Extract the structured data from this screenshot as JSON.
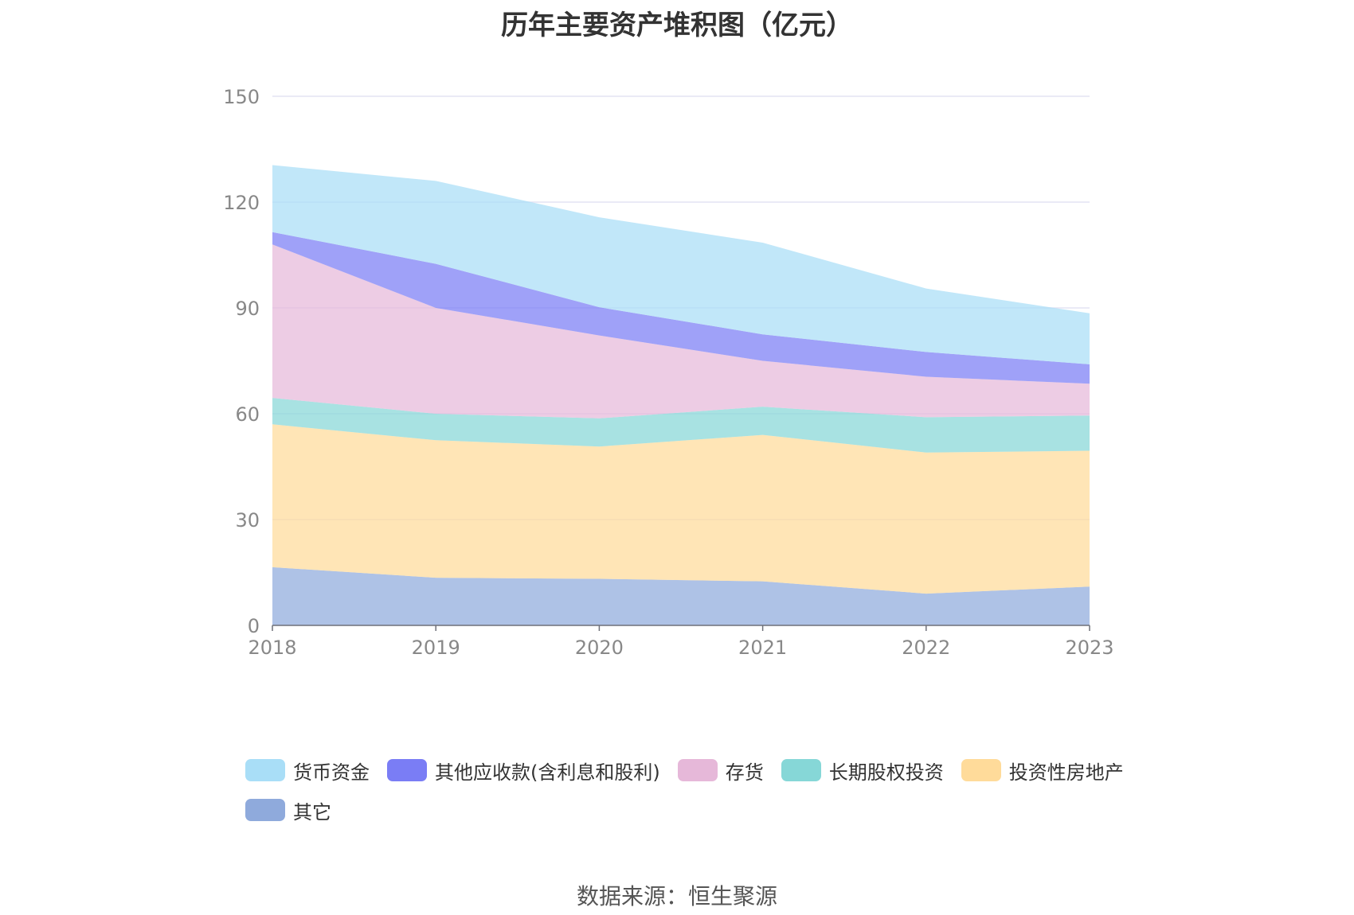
{
  "chart_data": {
    "type": "area",
    "title": "历年主要资产堆积图（亿元）",
    "xlabel": "",
    "ylabel": "",
    "ylim": [
      0,
      150
    ],
    "yticks": [
      0,
      30,
      60,
      90,
      120,
      150
    ],
    "grid": true,
    "stacked": true,
    "legend_position": "bottom",
    "categories": [
      "2018",
      "2019",
      "2020",
      "2021",
      "2022",
      "2023"
    ],
    "series": [
      {
        "name": "其它",
        "color": "#8faadc",
        "values": [
          16.5,
          13.5,
          13.2,
          12.5,
          9.0,
          11.0
        ]
      },
      {
        "name": "投资性房地产",
        "color": "#ffdb9a",
        "values": [
          40.5,
          39.0,
          37.5,
          41.5,
          40.0,
          38.5
        ]
      },
      {
        "name": "长期股权投资",
        "color": "#86d7d7",
        "values": [
          7.5,
          7.5,
          8.0,
          8.0,
          10.0,
          10.0
        ]
      },
      {
        "name": "存货",
        "color": "#e6b8d9",
        "values": [
          43.5,
          30.0,
          23.5,
          13.0,
          11.5,
          9.0
        ]
      },
      {
        "name": "其他应收款(含利息和股利)",
        "color": "#7a7df5",
        "values": [
          3.5,
          12.5,
          8.0,
          7.5,
          7.0,
          5.5
        ]
      },
      {
        "name": "货币资金",
        "color": "#a9def7",
        "values": [
          19.0,
          23.5,
          25.5,
          26.0,
          18.0,
          14.5
        ]
      }
    ],
    "legend_order": [
      "货币资金",
      "其他应收款(含利息和股利)",
      "存货",
      "长期股权投资",
      "投资性房地产",
      "其它"
    ]
  },
  "source": "数据来源：恒生聚源"
}
